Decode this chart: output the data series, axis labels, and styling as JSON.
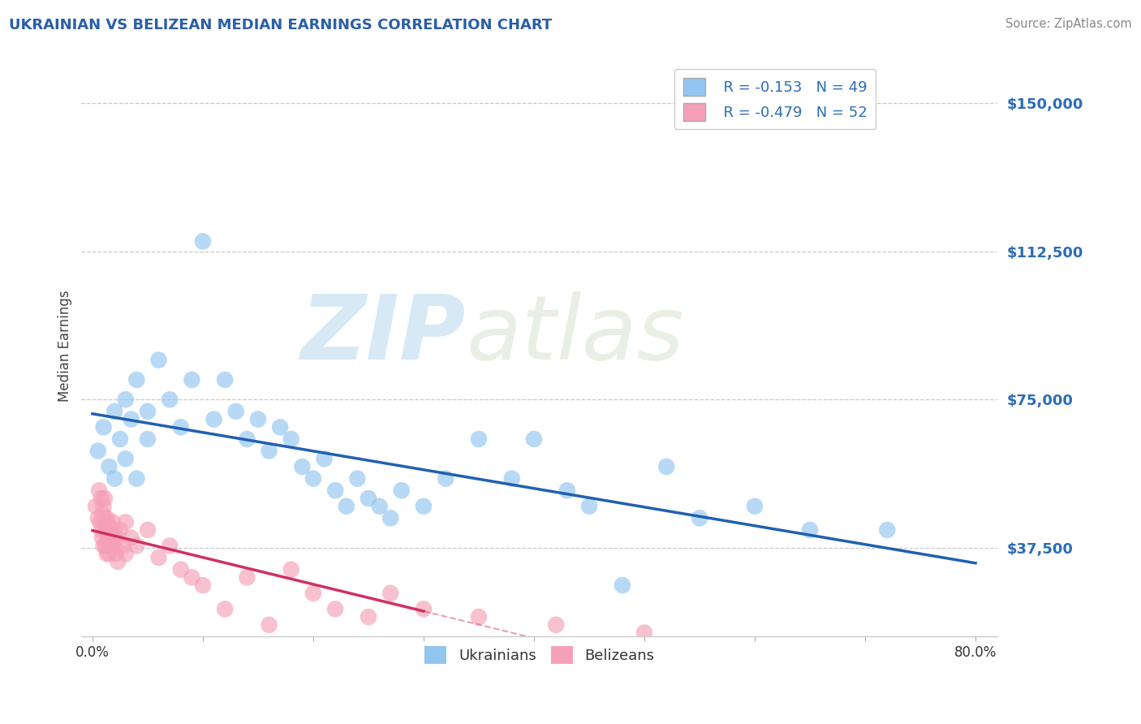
{
  "title": "UKRAINIAN VS BELIZEAN MEDIAN EARNINGS CORRELATION CHART",
  "source": "Source: ZipAtlas.com",
  "ylabel": "Median Earnings",
  "xlim": [
    -0.01,
    0.82
  ],
  "ylim": [
    15000,
    162000
  ],
  "yticks": [
    37500,
    75000,
    112500,
    150000
  ],
  "ytick_labels": [
    "$37,500",
    "$75,000",
    "$112,500",
    "$150,000"
  ],
  "xticks": [
    0.0,
    0.1,
    0.2,
    0.3,
    0.4,
    0.5,
    0.6,
    0.7,
    0.8
  ],
  "xtick_labels": [
    "0.0%",
    "",
    "",
    "",
    "",
    "",
    "",
    "",
    "80.0%"
  ],
  "blue_color": "#92C5F0",
  "pink_color": "#F5A0B8",
  "blue_line_color": "#2060B0",
  "pink_line_color": "#D03060",
  "blue_R": -0.153,
  "blue_N": 49,
  "pink_R": -0.479,
  "pink_N": 52,
  "watermark_zip": "ZIP",
  "watermark_atlas": "atlas",
  "title_color": "#2B5EA7",
  "axis_color": "#2B6CB8",
  "background_color": "#FFFFFF",
  "grid_color": "#BBBBBB",
  "blue_scatter_x": [
    0.005,
    0.01,
    0.015,
    0.02,
    0.02,
    0.025,
    0.03,
    0.03,
    0.035,
    0.04,
    0.04,
    0.05,
    0.05,
    0.06,
    0.07,
    0.08,
    0.09,
    0.1,
    0.11,
    0.12,
    0.13,
    0.14,
    0.15,
    0.16,
    0.17,
    0.18,
    0.19,
    0.2,
    0.21,
    0.22,
    0.23,
    0.24,
    0.25,
    0.26,
    0.27,
    0.28,
    0.3,
    0.32,
    0.35,
    0.38,
    0.4,
    0.43,
    0.45,
    0.48,
    0.52,
    0.55,
    0.6,
    0.65,
    0.72
  ],
  "blue_scatter_y": [
    62000,
    68000,
    58000,
    72000,
    55000,
    65000,
    60000,
    75000,
    70000,
    55000,
    80000,
    65000,
    72000,
    85000,
    75000,
    68000,
    80000,
    115000,
    70000,
    80000,
    72000,
    65000,
    70000,
    62000,
    68000,
    65000,
    58000,
    55000,
    60000,
    52000,
    48000,
    55000,
    50000,
    48000,
    45000,
    52000,
    48000,
    55000,
    65000,
    55000,
    65000,
    52000,
    48000,
    28000,
    58000,
    45000,
    48000,
    42000,
    42000
  ],
  "pink_scatter_x": [
    0.003,
    0.005,
    0.006,
    0.007,
    0.008,
    0.008,
    0.009,
    0.009,
    0.01,
    0.01,
    0.01,
    0.011,
    0.012,
    0.012,
    0.013,
    0.013,
    0.014,
    0.015,
    0.015,
    0.016,
    0.017,
    0.018,
    0.019,
    0.02,
    0.02,
    0.021,
    0.022,
    0.023,
    0.025,
    0.028,
    0.03,
    0.03,
    0.035,
    0.04,
    0.05,
    0.06,
    0.07,
    0.08,
    0.09,
    0.1,
    0.12,
    0.14,
    0.16,
    0.18,
    0.2,
    0.22,
    0.25,
    0.27,
    0.3,
    0.35,
    0.42,
    0.5
  ],
  "pink_scatter_y": [
    48000,
    45000,
    52000,
    44000,
    50000,
    42000,
    46000,
    40000,
    48000,
    44000,
    38000,
    50000,
    42000,
    38000,
    45000,
    36000,
    44000,
    40000,
    36000,
    42000,
    38000,
    44000,
    40000,
    38000,
    42000,
    36000,
    40000,
    34000,
    42000,
    38000,
    44000,
    36000,
    40000,
    38000,
    42000,
    35000,
    38000,
    32000,
    30000,
    28000,
    22000,
    30000,
    18000,
    32000,
    26000,
    22000,
    20000,
    26000,
    22000,
    20000,
    18000,
    16000
  ]
}
